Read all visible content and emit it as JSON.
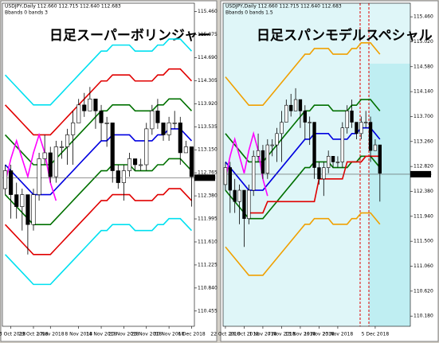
{
  "chart_data": [
    {
      "type": "candlestick",
      "header": "USDJPY,Daily 112.660 112.715 112.640 112.683",
      "subheader": "Bbands 0 bands 3",
      "title": "日足スーパーボリンジャー",
      "categories": [
        null,
        "23 Oct 2018",
        null,
        null,
        null,
        "29 Oct 2018",
        null,
        null,
        "1 Nov 2018",
        null,
        null,
        null,
        null,
        "8 Nov 2018",
        null,
        null,
        null,
        "14 Nov 2018",
        null,
        null,
        null,
        "20 Nov 2018",
        null,
        null,
        null,
        "26 Nov 2018",
        null,
        null,
        null,
        "30 Nov 2018",
        null,
        null,
        null,
        "6 Dec 2018"
      ],
      "open": [
        112.5,
        112.8,
        112.4,
        112.2,
        112.4,
        111.9,
        112.4,
        113.0,
        113.1,
        112.7,
        113.2,
        113.2,
        113.4,
        113.6,
        113.9,
        113.8,
        114.0,
        113.8,
        113.6,
        113.6,
        112.8,
        112.6,
        112.8,
        113.0,
        112.9,
        112.9,
        113.5,
        113.8,
        113.6,
        113.4,
        113.6,
        113.6,
        113.1,
        113.2
      ],
      "high": [
        112.9,
        112.9,
        112.6,
        112.5,
        112.4,
        112.5,
        113.1,
        113.4,
        113.2,
        113.3,
        113.3,
        113.5,
        113.8,
        114.0,
        114.1,
        114.2,
        114.0,
        113.9,
        113.7,
        113.6,
        112.9,
        112.9,
        113.1,
        113.0,
        113.0,
        113.6,
        113.9,
        114.0,
        113.6,
        113.7,
        113.8,
        113.7,
        113.3,
        113.2
      ],
      "low": [
        112.4,
        112.0,
        112.0,
        111.8,
        111.4,
        111.8,
        112.3,
        112.9,
        112.6,
        112.6,
        113.0,
        112.9,
        112.9,
        113.6,
        113.7,
        113.8,
        113.5,
        113.3,
        113.2,
        112.6,
        112.5,
        112.3,
        112.7,
        112.8,
        112.8,
        112.8,
        113.4,
        113.5,
        113.3,
        113.3,
        113.5,
        112.9,
        113.1,
        112.2
      ],
      "close": [
        112.8,
        112.4,
        112.2,
        112.4,
        111.9,
        112.4,
        113.0,
        113.1,
        112.7,
        113.2,
        113.2,
        113.4,
        113.6,
        113.9,
        113.8,
        114.0,
        113.8,
        113.6,
        113.6,
        112.8,
        112.6,
        112.8,
        113.0,
        112.9,
        112.9,
        113.5,
        113.8,
        113.6,
        113.4,
        113.6,
        113.6,
        113.1,
        113.2,
        112.7
      ],
      "up_color": "#ffffff",
      "down_color": "#000000",
      "lines": [
        {
          "color": "#00e0f0",
          "values": [
            114.4,
            114.3,
            114.2,
            114.1,
            114.0,
            113.9,
            113.9,
            113.9,
            113.9,
            114.0,
            114.1,
            114.2,
            114.3,
            114.4,
            114.5,
            114.6,
            114.7,
            114.8,
            114.8,
            114.9,
            114.9,
            114.9,
            114.9,
            114.8,
            114.8,
            114.8,
            114.8,
            114.9,
            114.9,
            115.0,
            115.0,
            115.0,
            114.9,
            114.8
          ]
        },
        {
          "color": "#e00000",
          "values": [
            113.9,
            113.8,
            113.7,
            113.6,
            113.5,
            113.4,
            113.4,
            113.4,
            113.4,
            113.5,
            113.6,
            113.7,
            113.8,
            113.9,
            114.0,
            114.1,
            114.2,
            114.3,
            114.3,
            114.4,
            114.4,
            114.4,
            114.4,
            114.3,
            114.3,
            114.3,
            114.3,
            114.4,
            114.4,
            114.5,
            114.5,
            114.5,
            114.4,
            114.3
          ]
        },
        {
          "color": "#007000",
          "values": [
            113.4,
            113.3,
            113.2,
            113.1,
            113.0,
            112.9,
            112.9,
            112.9,
            112.9,
            113.0,
            113.1,
            113.2,
            113.3,
            113.4,
            113.5,
            113.6,
            113.7,
            113.8,
            113.8,
            113.9,
            113.9,
            113.9,
            113.9,
            113.8,
            113.8,
            113.8,
            113.8,
            113.9,
            113.9,
            114.0,
            114.0,
            114.0,
            113.9,
            113.8
          ]
        },
        {
          "color": "#0000e0",
          "values": [
            112.9,
            112.8,
            112.7,
            112.6,
            112.5,
            112.4,
            112.4,
            112.4,
            112.4,
            112.5,
            112.6,
            112.7,
            112.8,
            112.9,
            113.0,
            113.1,
            113.2,
            113.3,
            113.3,
            113.4,
            113.4,
            113.4,
            113.4,
            113.3,
            113.3,
            113.3,
            113.3,
            113.4,
            113.4,
            113.5,
            113.5,
            113.5,
            113.4,
            113.3
          ]
        },
        {
          "color": "#007000",
          "values": [
            112.4,
            112.3,
            112.2,
            112.1,
            112.0,
            111.9,
            111.9,
            111.9,
            111.9,
            112.0,
            112.1,
            112.2,
            112.3,
            112.4,
            112.5,
            112.6,
            112.7,
            112.8,
            112.8,
            112.9,
            112.9,
            112.9,
            112.9,
            112.8,
            112.8,
            112.8,
            112.8,
            112.9,
            112.9,
            113.0,
            113.0,
            113.0,
            112.9,
            112.8
          ]
        },
        {
          "color": "#e00000",
          "values": [
            111.9,
            111.8,
            111.7,
            111.6,
            111.5,
            111.4,
            111.4,
            111.4,
            111.4,
            111.5,
            111.6,
            111.7,
            111.8,
            111.9,
            112.0,
            112.1,
            112.2,
            112.3,
            112.3,
            112.4,
            112.4,
            112.4,
            112.4,
            112.3,
            112.3,
            112.3,
            112.3,
            112.4,
            112.4,
            112.5,
            112.5,
            112.5,
            112.4,
            112.3
          ]
        },
        {
          "color": "#00e0f0",
          "values": [
            111.4,
            111.3,
            111.2,
            111.1,
            111.0,
            110.9,
            110.9,
            110.9,
            110.9,
            111.0,
            111.1,
            111.2,
            111.3,
            111.4,
            111.5,
            111.6,
            111.7,
            111.8,
            111.8,
            111.9,
            111.9,
            111.9,
            111.9,
            111.8,
            111.8,
            111.8,
            111.8,
            111.9,
            111.9,
            112.0,
            112.0,
            112.0,
            111.9,
            111.8
          ]
        },
        {
          "color": "#ff00ff",
          "values": [
            112.6,
            113.0,
            113.3,
            113.0,
            112.7,
            113.1,
            113.4,
            113.1,
            112.6,
            112.3,
            null,
            null,
            null,
            null,
            null,
            null,
            null,
            null,
            null,
            null,
            null,
            null,
            null,
            null,
            null,
            null,
            null,
            null,
            null,
            null,
            null,
            null,
            null,
            null
          ]
        }
      ],
      "last_price": 112.683,
      "ylim": [
        110.2,
        115.6
      ],
      "yticks": [
        {
          "value": 115.46,
          "label": "115.460"
        },
        {
          "value": 115.075,
          "label": "115.075"
        },
        {
          "value": 114.69,
          "label": "114.690"
        },
        {
          "value": 114.305,
          "label": "114.305"
        },
        {
          "value": 113.92,
          "label": "113.920"
        },
        {
          "value": 113.535,
          "label": "113.535"
        },
        {
          "value": 113.15,
          "label": "113.150"
        },
        {
          "value": 112.765,
          "label": "112.765"
        },
        {
          "value": 112.38,
          "label": "112.380"
        },
        {
          "value": 111.995,
          "label": "111.995"
        },
        {
          "value": 111.61,
          "label": "111.610"
        },
        {
          "value": 111.225,
          "label": "111.225"
        },
        {
          "value": 110.84,
          "label": "110.840"
        },
        {
          "value": 110.455,
          "label": "110.455"
        }
      ],
      "grid": false
    },
    {
      "type": "candlestick",
      "header": "USDJPY,Daily 112.660 112.715 112.640 112.683",
      "subheader": "Bbands 0 bands 1.5",
      "title": "日足スパンモデルスペシャル",
      "categories": [
        "22 Oct 2018",
        null,
        null,
        null,
        "26 Oct 2018",
        null,
        null,
        null,
        "1 Nov 2018",
        null,
        null,
        null,
        "7 Nov 2018",
        null,
        null,
        null,
        "13 Nov 2018",
        null,
        null,
        null,
        "19 Nov 2018",
        null,
        null,
        null,
        "23 Nov 2018",
        null,
        null,
        null,
        null,
        null,
        null,
        null,
        "5 Dec 2018",
        null
      ],
      "open": [
        112.5,
        112.8,
        112.4,
        112.2,
        112.4,
        111.9,
        112.4,
        113.0,
        113.1,
        112.7,
        113.2,
        113.2,
        113.4,
        113.6,
        113.9,
        113.8,
        114.0,
        113.8,
        113.6,
        113.6,
        112.8,
        112.6,
        112.8,
        113.0,
        112.9,
        112.9,
        113.5,
        113.8,
        113.6,
        113.4,
        113.6,
        113.6,
        113.1,
        113.2
      ],
      "high": [
        112.9,
        112.9,
        112.6,
        112.5,
        112.4,
        112.5,
        113.1,
        113.4,
        113.2,
        113.3,
        113.3,
        113.5,
        113.8,
        114.0,
        114.1,
        114.2,
        114.0,
        113.9,
        113.7,
        113.6,
        112.9,
        112.9,
        113.1,
        113.0,
        113.0,
        113.6,
        113.9,
        114.0,
        113.6,
        113.7,
        113.8,
        113.7,
        113.3,
        113.2
      ],
      "low": [
        112.4,
        112.0,
        112.0,
        111.8,
        111.4,
        111.8,
        112.3,
        112.9,
        112.6,
        112.6,
        113.0,
        112.9,
        112.9,
        113.6,
        113.7,
        113.8,
        113.5,
        113.3,
        113.2,
        112.6,
        112.5,
        112.3,
        112.7,
        112.8,
        112.8,
        112.8,
        113.4,
        113.5,
        113.3,
        113.3,
        113.5,
        112.9,
        113.1,
        112.2
      ],
      "close": [
        112.8,
        112.4,
        112.2,
        112.4,
        111.9,
        112.4,
        113.0,
        113.1,
        112.7,
        113.2,
        113.2,
        113.4,
        113.6,
        113.9,
        113.8,
        114.0,
        113.8,
        113.6,
        113.6,
        112.8,
        112.6,
        112.8,
        113.0,
        112.9,
        112.9,
        113.5,
        113.8,
        113.6,
        113.4,
        113.6,
        113.6,
        113.1,
        113.2,
        112.7
      ],
      "up_color": "#ffffff",
      "down_color": "#000000",
      "lines": [
        {
          "color": "#f0a000",
          "values": [
            114.4,
            114.3,
            114.2,
            114.1,
            114.0,
            113.9,
            113.9,
            113.9,
            113.9,
            114.0,
            114.1,
            114.2,
            114.3,
            114.4,
            114.5,
            114.6,
            114.7,
            114.8,
            114.8,
            114.9,
            114.9,
            114.9,
            114.9,
            114.8,
            114.8,
            114.8,
            114.8,
            114.9,
            114.9,
            115.0,
            115.0,
            115.0,
            114.9,
            114.8
          ]
        },
        {
          "color": "#007000",
          "values": [
            113.4,
            113.3,
            113.2,
            113.1,
            113.0,
            112.9,
            112.9,
            112.9,
            112.9,
            113.0,
            113.1,
            113.2,
            113.3,
            113.4,
            113.5,
            113.6,
            113.7,
            113.8,
            113.8,
            113.9,
            113.9,
            113.9,
            113.9,
            113.8,
            113.8,
            113.8,
            113.8,
            113.9,
            113.9,
            114.0,
            114.0,
            114.0,
            113.9,
            113.8
          ]
        },
        {
          "color": "#0000e0",
          "values": [
            112.9,
            112.8,
            112.7,
            112.6,
            112.5,
            112.4,
            112.4,
            112.4,
            112.4,
            112.5,
            112.6,
            112.7,
            112.8,
            112.9,
            113.0,
            113.1,
            113.2,
            113.3,
            113.3,
            113.4,
            113.4,
            113.4,
            113.4,
            113.3,
            113.3,
            113.3,
            113.3,
            113.4,
            113.4,
            113.5,
            113.5,
            113.5,
            113.4,
            113.3
          ]
        },
        {
          "color": "#007000",
          "values": [
            112.4,
            112.3,
            112.2,
            112.1,
            112.0,
            111.9,
            111.9,
            111.9,
            111.9,
            112.0,
            112.1,
            112.2,
            112.3,
            112.4,
            112.5,
            112.6,
            112.7,
            112.8,
            112.8,
            112.9,
            112.9,
            112.9,
            112.9,
            112.8,
            112.8,
            112.8,
            112.8,
            112.9,
            112.9,
            113.0,
            113.0,
            113.0,
            112.9,
            112.8
          ]
        },
        {
          "color": "#f0a000",
          "values": [
            111.4,
            111.3,
            111.2,
            111.1,
            111.0,
            110.9,
            110.9,
            110.9,
            110.9,
            111.0,
            111.1,
            111.2,
            111.3,
            111.4,
            111.5,
            111.6,
            111.7,
            111.8,
            111.8,
            111.9,
            111.9,
            111.9,
            111.9,
            111.8,
            111.8,
            111.8,
            111.8,
            111.9,
            111.9,
            112.0,
            112.0,
            112.0,
            111.9,
            111.8
          ]
        },
        {
          "color": "#e00000",
          "values": [
            null,
            null,
            null,
            null,
            null,
            112.0,
            112.0,
            112.0,
            112.0,
            112.2,
            112.2,
            112.2,
            112.2,
            112.2,
            112.2,
            112.2,
            112.2,
            112.2,
            112.2,
            112.2,
            112.6,
            112.6,
            112.6,
            112.6,
            112.6,
            112.6,
            112.9,
            112.9,
            112.9,
            112.9,
            113.0,
            113.0,
            113.0,
            113.0
          ]
        },
        {
          "color": "#ff00ff",
          "values": [
            112.6,
            113.0,
            113.3,
            113.0,
            112.7,
            113.1,
            113.4,
            113.1,
            112.6,
            112.3,
            null,
            null,
            null,
            null,
            null,
            null,
            null,
            null,
            null,
            null,
            null,
            null,
            null,
            null,
            null,
            null,
            null,
            null,
            null,
            null,
            null,
            null,
            null,
            null
          ]
        }
      ],
      "last_price": 112.683,
      "ylim": [
        110.0,
        115.7
      ],
      "yticks": [
        {
          "value": 115.46,
          "label": "115.460"
        },
        {
          "value": 115.02,
          "label": "115.020"
        },
        {
          "value": 114.58,
          "label": "114.580"
        },
        {
          "value": 114.14,
          "label": "114.140"
        },
        {
          "value": 113.7,
          "label": "113.700"
        },
        {
          "value": 113.26,
          "label": "113.260"
        },
        {
          "value": 112.82,
          "label": "112.820"
        },
        {
          "value": 112.38,
          "label": "112.380"
        },
        {
          "value": 111.94,
          "label": "111.940"
        },
        {
          "value": 111.5,
          "label": "111.500"
        },
        {
          "value": 111.06,
          "label": "111.060"
        },
        {
          "value": 110.62,
          "label": "110.620"
        },
        {
          "value": 110.18,
          "label": "110.180"
        }
      ],
      "grid": false
    }
  ]
}
